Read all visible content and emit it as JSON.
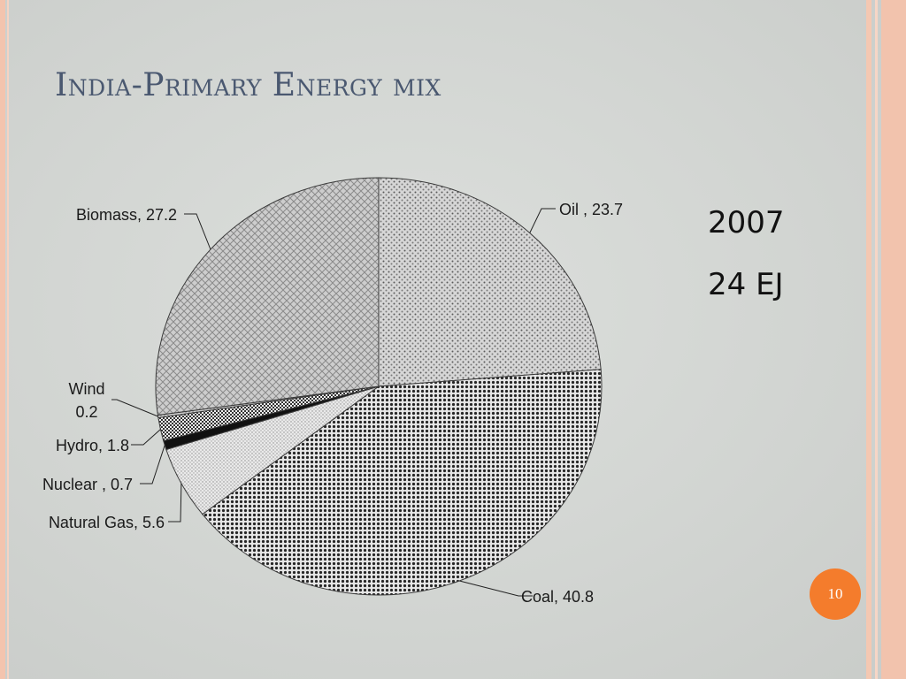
{
  "slide": {
    "title": "India-Primary Energy mix",
    "year": "2007",
    "total": "24 EJ",
    "page_number": "10"
  },
  "chart_data": {
    "type": "pie",
    "title": "",
    "slices": [
      {
        "label": "Oil , 23.7",
        "name": "Oil",
        "value": 23.7
      },
      {
        "label": "Coal, 40.8",
        "name": "Coal",
        "value": 40.8
      },
      {
        "label": "Natural Gas, 5.6",
        "name": "Natural Gas",
        "value": 5.6
      },
      {
        "label": "Nuclear , 0.7",
        "name": "Nuclear",
        "value": 0.7
      },
      {
        "label": "Hydro, 1.8",
        "name": "Hydro",
        "value": 1.8
      },
      {
        "label": "Wind",
        "label2": "0.2",
        "name": "Wind",
        "value": 0.2
      },
      {
        "label": "Biomass, 27.2",
        "name": "Biomass",
        "value": 27.2
      }
    ],
    "start": "12 o'clock",
    "direction": "clockwise",
    "legend": "none",
    "data_labels": "outside with leader lines"
  }
}
